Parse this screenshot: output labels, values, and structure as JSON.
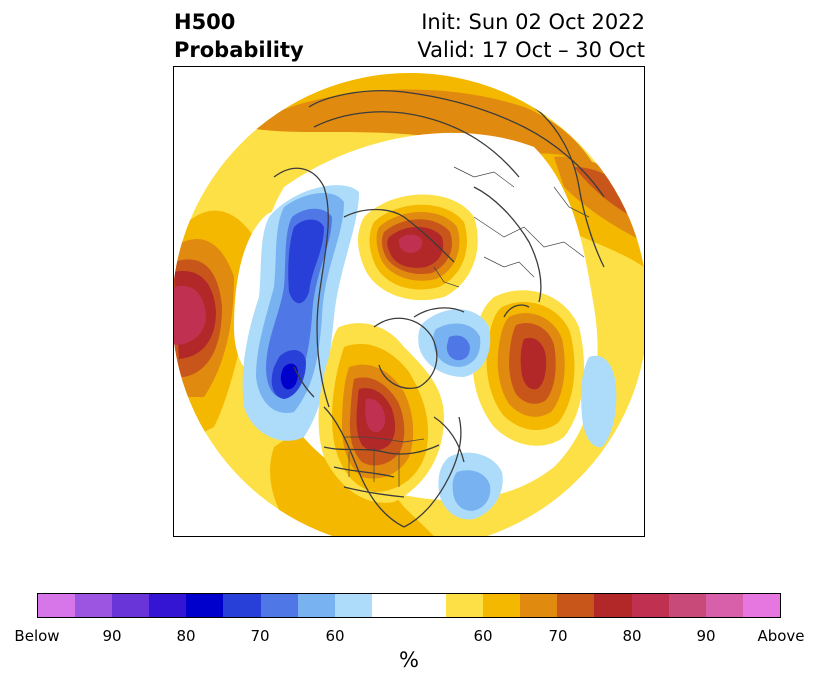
{
  "title": {
    "left_line1": "H500",
    "left_line2": "Probability",
    "right_line1": "Init: Sun 02 Oct 2022",
    "right_line2": "Valid: 17 Oct – 30 Oct"
  },
  "colorbar": {
    "unit": "%",
    "labels": [
      "Below",
      "90",
      "80",
      "70",
      "60",
      "60",
      "70",
      "80",
      "90",
      "Above"
    ],
    "colors": [
      "#d676e8",
      "#9b55e0",
      "#6a35d8",
      "#3515d4",
      "#0000cc",
      "#2840d8",
      "#4f78e6",
      "#78b2f0",
      "#acdcfa",
      "#ffffff",
      "#fde046",
      "#f4b800",
      "#e08a10",
      "#c8561a",
      "#b22828",
      "#c03050",
      "#c84a78",
      "#d860aa",
      "#e676e0"
    ]
  },
  "map": {
    "features": [
      "north-polar-stereographic-map",
      "coastlines",
      "country-borders",
      "state-borders"
    ],
    "anomalies": [
      {
        "name": "pacific-positive",
        "sign": "above",
        "max_level": "80"
      },
      {
        "name": "north-america-positive",
        "sign": "above",
        "max_level": "80"
      },
      {
        "name": "siberia-positive",
        "sign": "above",
        "max_level": "80"
      },
      {
        "name": "atlantic-positive",
        "sign": "above",
        "max_level": "80"
      },
      {
        "name": "alaska-negative",
        "sign": "below",
        "max_level": "70"
      },
      {
        "name": "east-pacific-negative",
        "sign": "below",
        "max_level": "80"
      },
      {
        "name": "greenland-negative",
        "sign": "below",
        "max_level": "60"
      },
      {
        "name": "west-atlantic-negative",
        "sign": "below",
        "max_level": "60"
      }
    ]
  }
}
